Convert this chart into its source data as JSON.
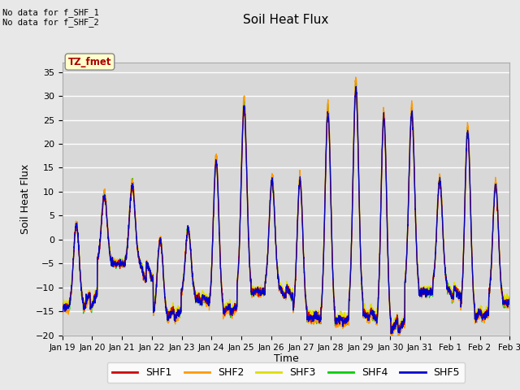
{
  "title": "Soil Heat Flux",
  "ylabel": "Soil Heat Flux",
  "xlabel": "Time",
  "no_data_text_1": "No data for f_SHF_1",
  "no_data_text_2": "No data for f_SHF_2",
  "tz_label": "TZ_fmet",
  "ylim": [
    -20,
    37
  ],
  "yticks": [
    -20,
    -15,
    -10,
    -5,
    0,
    5,
    10,
    15,
    20,
    25,
    30,
    35
  ],
  "x_tick_labels": [
    "Jan 19",
    "Jan 20",
    "Jan 21",
    "Jan 22",
    "Jan 23",
    "Jan 24",
    "Jan 25",
    "Jan 26",
    "Jan 27",
    "Jan 28",
    "Jan 29",
    "Jan 30",
    "Jan 31",
    "Feb 1",
    "Feb 2",
    "Feb 3"
  ],
  "colors": {
    "SHF1": "#cc0000",
    "SHF2": "#ff9900",
    "SHF3": "#dddd00",
    "SHF4": "#00cc00",
    "SHF5": "#0000cc"
  },
  "axes_bg_color": "#e8e8e8",
  "plot_bg_color": "#d8d8d8",
  "grid_color": "#ffffff",
  "tz_box_color": "#ffffcc",
  "tz_text_color": "#aa0000"
}
